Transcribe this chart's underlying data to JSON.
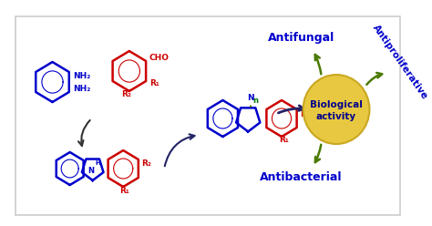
{
  "fig_width": 4.74,
  "fig_height": 2.48,
  "dpi": 100,
  "bg_color": "#ffffff",
  "box_color": "#cccccc",
  "blue_color": "#0000cc",
  "red_color": "#cc0000",
  "green_color": "#336600",
  "dark_green": "#4a7a00",
  "gold_color": "#e8c840",
  "gold_edge": "#c8a820",
  "antifungal_label": "Antifungal",
  "antibacterial_label": "Antibacterial",
  "antiproliferative_label": "Antiproliferative",
  "bio_label1": "Biological",
  "bio_label2": "activity",
  "nh2_label": "NH₂",
  "cho_label": "CHO",
  "n_label": "n",
  "h_label": "H",
  "r1_label": "R₁",
  "r2_label": "R₂"
}
